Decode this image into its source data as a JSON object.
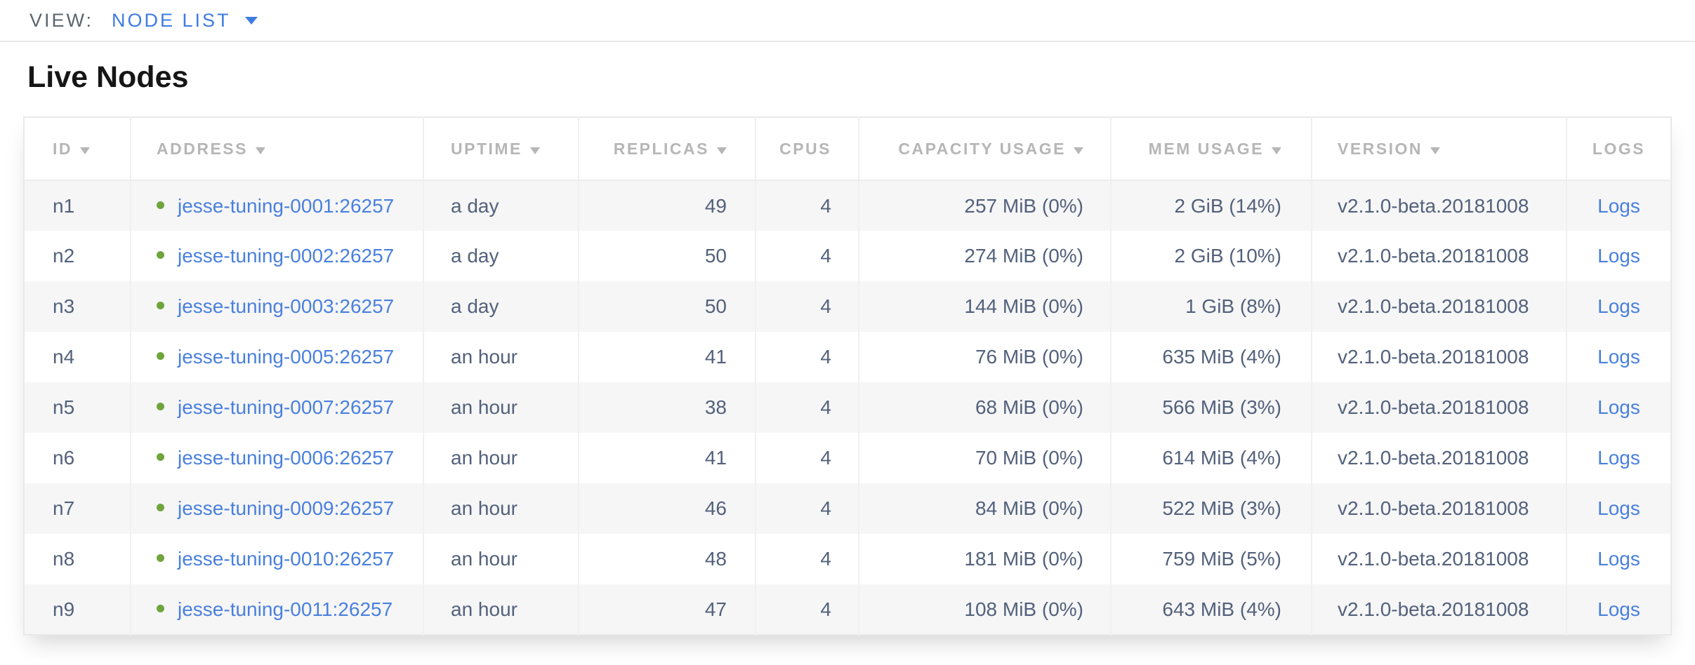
{
  "view_bar": {
    "label": "VIEW:",
    "selected_view": "NODE LIST"
  },
  "page": {
    "title": "Live Nodes"
  },
  "table": {
    "columns": [
      {
        "label": "ID",
        "sortable": true
      },
      {
        "label": "ADDRESS",
        "sortable": true
      },
      {
        "label": "UPTIME",
        "sortable": true
      },
      {
        "label": "REPLICAS",
        "sortable": true
      },
      {
        "label": "CPUS",
        "sortable": false
      },
      {
        "label": "CAPACITY USAGE",
        "sortable": true
      },
      {
        "label": "MEM USAGE",
        "sortable": true
      },
      {
        "label": "VERSION",
        "sortable": true
      },
      {
        "label": "LOGS",
        "sortable": false
      }
    ],
    "rows": [
      {
        "id": "n1",
        "status": "live",
        "address": "jesse-tuning-0001:26257",
        "uptime": "a day",
        "replicas": "49",
        "cpus": "4",
        "capacity_usage": "257 MiB (0%)",
        "mem_usage": "2 GiB (14%)",
        "version": "v2.1.0-beta.20181008",
        "logs": "Logs"
      },
      {
        "id": "n2",
        "status": "live",
        "address": "jesse-tuning-0002:26257",
        "uptime": "a day",
        "replicas": "50",
        "cpus": "4",
        "capacity_usage": "274 MiB (0%)",
        "mem_usage": "2 GiB (10%)",
        "version": "v2.1.0-beta.20181008",
        "logs": "Logs"
      },
      {
        "id": "n3",
        "status": "live",
        "address": "jesse-tuning-0003:26257",
        "uptime": "a day",
        "replicas": "50",
        "cpus": "4",
        "capacity_usage": "144 MiB (0%)",
        "mem_usage": "1 GiB (8%)",
        "version": "v2.1.0-beta.20181008",
        "logs": "Logs"
      },
      {
        "id": "n4",
        "status": "live",
        "address": "jesse-tuning-0005:26257",
        "uptime": "an hour",
        "replicas": "41",
        "cpus": "4",
        "capacity_usage": "76 MiB (0%)",
        "mem_usage": "635 MiB (4%)",
        "version": "v2.1.0-beta.20181008",
        "logs": "Logs"
      },
      {
        "id": "n5",
        "status": "live",
        "address": "jesse-tuning-0007:26257",
        "uptime": "an hour",
        "replicas": "38",
        "cpus": "4",
        "capacity_usage": "68 MiB (0%)",
        "mem_usage": "566 MiB (3%)",
        "version": "v2.1.0-beta.20181008",
        "logs": "Logs"
      },
      {
        "id": "n6",
        "status": "live",
        "address": "jesse-tuning-0006:26257",
        "uptime": "an hour",
        "replicas": "41",
        "cpus": "4",
        "capacity_usage": "70 MiB (0%)",
        "mem_usage": "614 MiB (4%)",
        "version": "v2.1.0-beta.20181008",
        "logs": "Logs"
      },
      {
        "id": "n7",
        "status": "live",
        "address": "jesse-tuning-0009:26257",
        "uptime": "an hour",
        "replicas": "46",
        "cpus": "4",
        "capacity_usage": "84 MiB (0%)",
        "mem_usage": "522 MiB (3%)",
        "version": "v2.1.0-beta.20181008",
        "logs": "Logs"
      },
      {
        "id": "n8",
        "status": "live",
        "address": "jesse-tuning-0010:26257",
        "uptime": "an hour",
        "replicas": "48",
        "cpus": "4",
        "capacity_usage": "181 MiB (0%)",
        "mem_usage": "759 MiB (5%)",
        "version": "v2.1.0-beta.20181008",
        "logs": "Logs"
      },
      {
        "id": "n9",
        "status": "live",
        "address": "jesse-tuning-0011:26257",
        "uptime": "an hour",
        "replicas": "47",
        "cpus": "4",
        "capacity_usage": "108 MiB (0%)",
        "mem_usage": "643 MiB (4%)",
        "version": "v2.1.0-beta.20181008",
        "logs": "Logs"
      }
    ]
  },
  "icons": {
    "view_dropdown": "chevron-down-icon",
    "column_sort": "triangle-down-icon",
    "node_status": "live-status-dot-icon"
  },
  "colors": {
    "link_blue": "#4a80dd",
    "view_selector_blue": "#3e7ce0",
    "live_status_green": "#6fa53c",
    "header_text_gray": "#b6b6b6",
    "body_text_slate": "#53617b",
    "row_alt_background": "#f6f6f7",
    "border_gray": "#e9e9e9"
  }
}
